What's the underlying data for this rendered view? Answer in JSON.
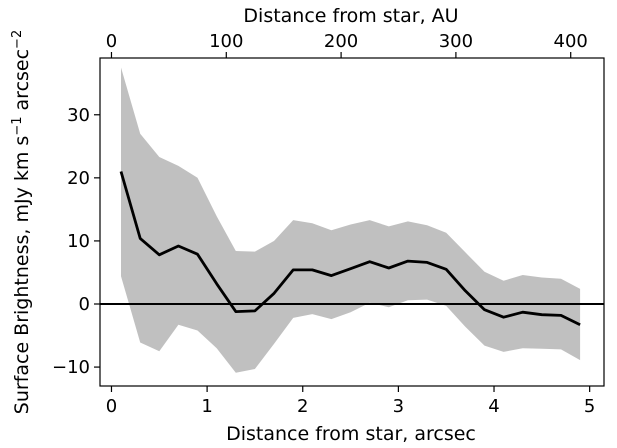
{
  "chart_data": {
    "type": "line",
    "xlabel": "Distance from star, arcsec",
    "x2label": "Distance from star, AU",
    "ylabel_base": "Surface Brightness, mJy km s",
    "ylabel_sup1": "−1",
    "ylabel_mid": " arcsec",
    "ylabel_sup2": "−2",
    "xlim": [
      -0.12,
      5.15
    ],
    "ylim": [
      -13,
      39
    ],
    "x_ticks": [
      0,
      1,
      2,
      3,
      4,
      5
    ],
    "x_tick_labels": [
      "0",
      "1",
      "2",
      "3",
      "4",
      "5"
    ],
    "y_ticks": [
      -10,
      0,
      10,
      20,
      30
    ],
    "y_tick_labels": [
      "−10",
      "0",
      "10",
      "20",
      "30"
    ],
    "au_per_arcsec": 83.3,
    "x2_ticks": [
      0,
      100,
      200,
      300,
      400
    ],
    "x2_tick_labels": [
      "0",
      "100",
      "200",
      "300",
      "400"
    ],
    "zero_line": 0,
    "grid": false,
    "colors": {
      "line": "#000000",
      "band": "#c0c0c0",
      "zero_line": "#000000"
    },
    "series": [
      {
        "x": [
          0.1,
          0.3,
          0.5,
          0.7,
          0.9,
          1.1,
          1.3,
          1.5,
          1.7,
          1.9,
          2.1,
          2.3,
          2.5,
          2.7,
          2.9,
          3.1,
          3.3,
          3.5,
          3.7,
          3.9,
          4.1,
          4.3,
          4.5,
          4.7,
          4.9
        ],
        "y": [
          21.0,
          10.4,
          7.8,
          9.2,
          7.9,
          3.2,
          -1.2,
          -1.1,
          1.7,
          5.4,
          5.4,
          4.5,
          5.6,
          6.7,
          5.7,
          6.8,
          6.6,
          5.5,
          2.1,
          -0.9,
          -2.1,
          -1.3,
          -1.7,
          -1.8,
          -3.3
        ],
        "y_upper": [
          37.5,
          27.0,
          23.3,
          21.9,
          20.0,
          13.9,
          8.4,
          8.3,
          10.0,
          13.3,
          12.8,
          11.7,
          12.6,
          13.3,
          12.3,
          13.1,
          12.5,
          11.3,
          8.2,
          5.1,
          3.7,
          4.6,
          4.2,
          4.0,
          2.4
        ],
        "y_lower": [
          4.4,
          -6.1,
          -7.5,
          -3.3,
          -4.2,
          -7.0,
          -10.9,
          -10.3,
          -6.3,
          -2.2,
          -1.6,
          -2.4,
          -1.3,
          0.2,
          -0.5,
          0.6,
          0.7,
          -0.3,
          -3.6,
          -6.6,
          -7.6,
          -7.0,
          -7.1,
          -7.2,
          -8.9
        ]
      }
    ]
  }
}
